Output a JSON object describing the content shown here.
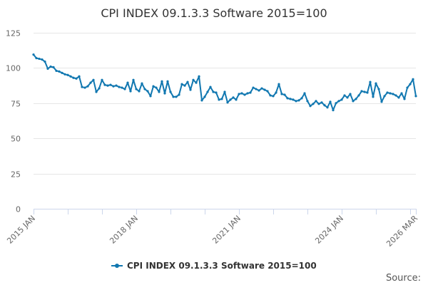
{
  "chart_data": {
    "type": "line",
    "title": "CPI INDEX 09.1.3.3 Software 2015=100",
    "xlabel": "",
    "ylabel": "",
    "ylim": [
      0,
      125
    ],
    "y_ticks": [
      0,
      25,
      50,
      75,
      100,
      125
    ],
    "x_tick_labels": [
      {
        "label": "2015 JAN",
        "x": "2015-01"
      },
      {
        "label": "2018 JAN",
        "x": "2018-01"
      },
      {
        "label": "2021 JAN",
        "x": "2021-01"
      },
      {
        "label": "2024 JAN",
        "x": "2024-01"
      },
      {
        "label": "2026 MAR",
        "x": "2026-03"
      }
    ],
    "x_range": [
      "2015-01",
      "2026-03"
    ],
    "grid": "horizontal",
    "legend_position": "bottom",
    "series": [
      {
        "name": "CPI INDEX 09.1.3.3 Software 2015=100",
        "color": "#1077b0",
        "marker": "circle",
        "points": [
          [
            "2015-01",
            109.5
          ],
          [
            "2015-02",
            107
          ],
          [
            "2015-03",
            106.5
          ],
          [
            "2015-04",
            106
          ],
          [
            "2015-05",
            104.5
          ],
          [
            "2015-06",
            99.5
          ],
          [
            "2015-07",
            101
          ],
          [
            "2015-08",
            100.5
          ],
          [
            "2015-09",
            98
          ],
          [
            "2015-10",
            97.5
          ],
          [
            "2015-11",
            96.5
          ],
          [
            "2015-12",
            95.5
          ],
          [
            "2016-01",
            95
          ],
          [
            "2016-02",
            94
          ],
          [
            "2016-03",
            93
          ],
          [
            "2016-04",
            92.5
          ],
          [
            "2016-05",
            94
          ],
          [
            "2016-06",
            86.5
          ],
          [
            "2016-07",
            86
          ],
          [
            "2016-08",
            87
          ],
          [
            "2016-09",
            89.5
          ],
          [
            "2016-10",
            91.5
          ],
          [
            "2016-11",
            83
          ],
          [
            "2016-12",
            85.5
          ],
          [
            "2017-01",
            91.5
          ],
          [
            "2017-02",
            88
          ],
          [
            "2017-03",
            87.5
          ],
          [
            "2017-04",
            88
          ],
          [
            "2017-05",
            87
          ],
          [
            "2017-06",
            87.5
          ],
          [
            "2017-07",
            86.5
          ],
          [
            "2017-08",
            86
          ],
          [
            "2017-09",
            85
          ],
          [
            "2017-10",
            89.5
          ],
          [
            "2017-11",
            83.5
          ],
          [
            "2017-12",
            91.5
          ],
          [
            "2018-01",
            85
          ],
          [
            "2018-02",
            83.5
          ],
          [
            "2018-03",
            89
          ],
          [
            "2018-04",
            85
          ],
          [
            "2018-05",
            83.5
          ],
          [
            "2018-06",
            80
          ],
          [
            "2018-07",
            87
          ],
          [
            "2018-08",
            86
          ],
          [
            "2018-09",
            83
          ],
          [
            "2018-10",
            90.5
          ],
          [
            "2018-11",
            82
          ],
          [
            "2018-12",
            90.5
          ],
          [
            "2019-01",
            83
          ],
          [
            "2019-02",
            79.5
          ],
          [
            "2019-03",
            79.5
          ],
          [
            "2019-04",
            81
          ],
          [
            "2019-05",
            88.5
          ],
          [
            "2019-06",
            87.5
          ],
          [
            "2019-07",
            90
          ],
          [
            "2019-08",
            84.5
          ],
          [
            "2019-09",
            91.5
          ],
          [
            "2019-10",
            89.5
          ],
          [
            "2019-11",
            94
          ],
          [
            "2019-12",
            77
          ],
          [
            "2020-01",
            79.5
          ],
          [
            "2020-02",
            83
          ],
          [
            "2020-03",
            86.5
          ],
          [
            "2020-04",
            83
          ],
          [
            "2020-05",
            82.5
          ],
          [
            "2020-06",
            77.5
          ],
          [
            "2020-07",
            78
          ],
          [
            "2020-08",
            83
          ],
          [
            "2020-09",
            75.5
          ],
          [
            "2020-10",
            77.5
          ],
          [
            "2020-11",
            79
          ],
          [
            "2020-12",
            77.5
          ],
          [
            "2021-01",
            81.5
          ],
          [
            "2021-02",
            82
          ],
          [
            "2021-03",
            81
          ],
          [
            "2021-04",
            82
          ],
          [
            "2021-05",
            82.5
          ],
          [
            "2021-06",
            86
          ],
          [
            "2021-07",
            85
          ],
          [
            "2021-08",
            84
          ],
          [
            "2021-09",
            85.5
          ],
          [
            "2021-10",
            84.5
          ],
          [
            "2021-11",
            83.5
          ],
          [
            "2021-12",
            80.5
          ],
          [
            "2022-01",
            80
          ],
          [
            "2022-02",
            82.5
          ],
          [
            "2022-03",
            88.5
          ],
          [
            "2022-04",
            81.5
          ],
          [
            "2022-05",
            81
          ],
          [
            "2022-06",
            78.5
          ],
          [
            "2022-07",
            78
          ],
          [
            "2022-08",
            77.5
          ],
          [
            "2022-09",
            76.5
          ],
          [
            "2022-10",
            77
          ],
          [
            "2022-11",
            78.5
          ],
          [
            "2022-12",
            82
          ],
          [
            "2023-01",
            76.5
          ],
          [
            "2023-02",
            73
          ],
          [
            "2023-03",
            74.5
          ],
          [
            "2023-04",
            76.5
          ],
          [
            "2023-05",
            74.5
          ],
          [
            "2023-06",
            75.5
          ],
          [
            "2023-07",
            73.5
          ],
          [
            "2023-08",
            72
          ],
          [
            "2023-09",
            76
          ],
          [
            "2023-10",
            70
          ],
          [
            "2023-11",
            75
          ],
          [
            "2023-12",
            76.5
          ],
          [
            "2024-01",
            77.5
          ],
          [
            "2024-02",
            80.5
          ],
          [
            "2024-03",
            79
          ],
          [
            "2024-04",
            81.5
          ],
          [
            "2024-05",
            76.5
          ],
          [
            "2024-06",
            78
          ],
          [
            "2024-07",
            80.5
          ],
          [
            "2024-08",
            83.5
          ],
          [
            "2024-09",
            83
          ],
          [
            "2024-10",
            82.5
          ],
          [
            "2024-11",
            90
          ],
          [
            "2024-12",
            79.5
          ],
          [
            "2025-01",
            89
          ],
          [
            "2025-02",
            85
          ],
          [
            "2025-03",
            76
          ],
          [
            "2025-04",
            80
          ],
          [
            "2025-05",
            82.5
          ],
          [
            "2025-06",
            82
          ],
          [
            "2025-07",
            81.5
          ],
          [
            "2025-08",
            80.5
          ],
          [
            "2025-09",
            79
          ],
          [
            "2025-10",
            82
          ],
          [
            "2025-11",
            78
          ],
          [
            "2025-12",
            86
          ],
          [
            "2026-01",
            88.5
          ],
          [
            "2026-02",
            92
          ],
          [
            "2026-03",
            80
          ]
        ]
      }
    ]
  },
  "credits": {
    "text": "Source:"
  },
  "colors": {
    "series": "#1077b0",
    "axis": "#ccd6eb",
    "grid": "#e6e6e6"
  }
}
